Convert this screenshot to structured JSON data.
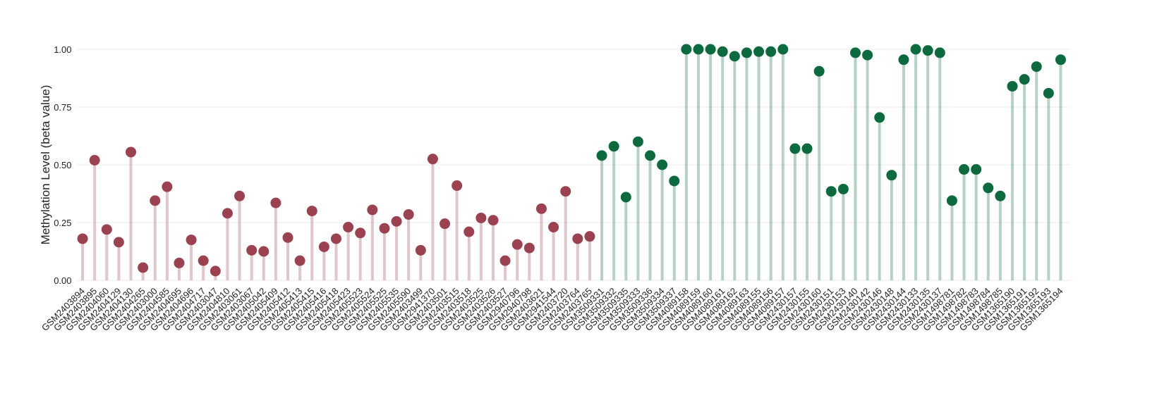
{
  "chart_data": {
    "type": "lollipop",
    "y_label": "Methylation Level (beta value)",
    "categories": [
      "GSM2403894",
      "GSM2403895",
      "GSM2404060",
      "GSM2404129",
      "GSM2404130",
      "GSM2404265",
      "GSM2403000",
      "GSM2404585",
      "GSM2404695",
      "GSM2404696",
      "GSM2404717",
      "GSM2403047",
      "GSM2404810",
      "GSM2403061",
      "GSM2403067",
      "GSM2405042",
      "GSM2405409",
      "GSM2405412",
      "GSM2405413",
      "GSM2405415",
      "GSM2405416",
      "GSM2405418",
      "GSM2405423",
      "GSM2405523",
      "GSM2405524",
      "GSM2405525",
      "GSM2405535",
      "GSM2405590",
      "GSM2403499",
      "GSM2941370",
      "GSM2403501",
      "GSM2403515",
      "GSM2403518",
      "GSM2403525",
      "GSM2403526",
      "GSM2403527",
      "GSM2940796",
      "GSM2940798",
      "GSM2403621",
      "GSM2941544",
      "GSM2403720",
      "GSM2403764",
      "GSM2403765",
      "GSM3509331",
      "GSM3509332",
      "GSM3509335",
      "GSM3509333",
      "GSM3509336",
      "GSM3509334",
      "GSM3509337",
      "GSM4089158",
      "GSM4089159",
      "GSM4089160",
      "GSM4089161",
      "GSM4089162",
      "GSM4089163",
      "GSM4089155",
      "GSM4089156",
      "GSM4089157",
      "GSM2430157",
      "GSM2430155",
      "GSM2430160",
      "GSM2430151",
      "GSM2430153",
      "GSM2430140",
      "GSM2430142",
      "GSM2430146",
      "GSM2430148",
      "GSM2430144",
      "GSM2430133",
      "GSM2430135",
      "GSM2430137",
      "GSM1498781",
      "GSM1498782",
      "GSM1498783",
      "GSM1498784",
      "GSM1498785",
      "GSM1365190",
      "GSM1365191",
      "GSM1365192",
      "GSM1365193",
      "GSM1365194"
    ],
    "values": [
      0.18,
      0.52,
      0.22,
      0.165,
      0.555,
      0.055,
      0.345,
      0.405,
      0.075,
      0.175,
      0.085,
      0.04,
      0.29,
      0.365,
      0.13,
      0.125,
      0.335,
      0.185,
      0.085,
      0.3,
      0.145,
      0.18,
      0.23,
      0.205,
      0.305,
      0.225,
      0.255,
      0.285,
      0.13,
      0.525,
      0.245,
      0.41,
      0.21,
      0.27,
      0.26,
      0.085,
      0.155,
      0.14,
      0.31,
      0.23,
      0.385,
      0.18,
      0.19,
      0.54,
      0.58,
      0.36,
      0.6,
      0.54,
      0.5,
      0.43,
      1.0,
      1.0,
      1.0,
      0.99,
      0.97,
      0.985,
      0.99,
      0.99,
      1.0,
      0.57,
      0.57,
      0.905,
      0.385,
      0.395,
      0.985,
      0.975,
      0.705,
      0.455,
      0.955,
      1.0,
      0.995,
      0.985,
      0.345,
      0.48,
      0.48,
      0.4,
      0.365,
      0.84,
      0.87,
      0.925,
      0.81,
      0.955
    ],
    "colors": [
      "#9b4150",
      "#9b4150",
      "#9b4150",
      "#9b4150",
      "#9b4150",
      "#9b4150",
      "#9b4150",
      "#9b4150",
      "#9b4150",
      "#9b4150",
      "#9b4150",
      "#9b4150",
      "#9b4150",
      "#9b4150",
      "#9b4150",
      "#9b4150",
      "#9b4150",
      "#9b4150",
      "#9b4150",
      "#9b4150",
      "#9b4150",
      "#9b4150",
      "#9b4150",
      "#9b4150",
      "#9b4150",
      "#9b4150",
      "#9b4150",
      "#9b4150",
      "#9b4150",
      "#9b4150",
      "#9b4150",
      "#9b4150",
      "#9b4150",
      "#9b4150",
      "#9b4150",
      "#9b4150",
      "#9b4150",
      "#9b4150",
      "#9b4150",
      "#9b4150",
      "#9b4150",
      "#9b4150",
      "#9b4150",
      "#0b6b3e",
      "#0b6b3e",
      "#0b6b3e",
      "#0b6b3e",
      "#0b6b3e",
      "#0b6b3e",
      "#0b6b3e",
      "#0b6b3e",
      "#0b6b3e",
      "#0b6b3e",
      "#0b6b3e",
      "#0b6b3e",
      "#0b6b3e",
      "#0b6b3e",
      "#0b6b3e",
      "#0b6b3e",
      "#0b6b3e",
      "#0b6b3e",
      "#0b6b3e",
      "#0b6b3e",
      "#0b6b3e",
      "#0b6b3e",
      "#0b6b3e",
      "#0b6b3e",
      "#0b6b3e",
      "#0b6b3e",
      "#0b6b3e",
      "#0b6b3e",
      "#0b6b3e",
      "#0b6b3e",
      "#0b6b3e",
      "#0b6b3e",
      "#0b6b3e",
      "#0b6b3e",
      "#0b6b3e",
      "#0b6b3e",
      "#0b6b3e",
      "#0b6b3e",
      "#0b6b3e"
    ],
    "ylim": [
      0,
      1
    ],
    "yticks": [
      {
        "value": 0,
        "label": "0.00"
      },
      {
        "value": 0.25,
        "label": "0.25"
      },
      {
        "value": 0.5,
        "label": "0.50"
      },
      {
        "value": 0.75,
        "label": "0.75"
      },
      {
        "value": 1,
        "label": "1.00"
      }
    ],
    "grid": true
  }
}
